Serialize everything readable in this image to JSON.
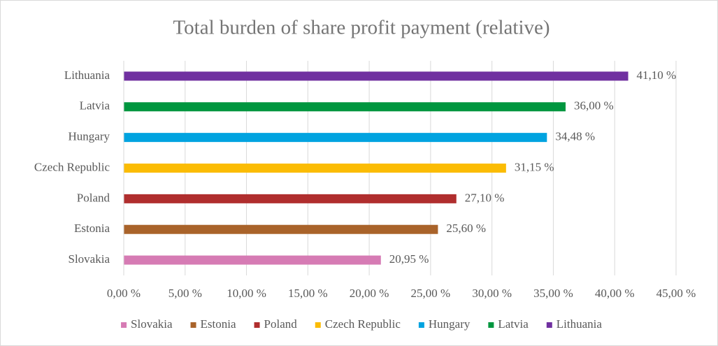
{
  "chart_data": {
    "type": "barh",
    "title": "Total burden of share profit payment (relative)",
    "categories": [
      "Slovakia",
      "Estonia",
      "Poland",
      "Czech Republic",
      "Hungary",
      "Latvia",
      "Lithuania"
    ],
    "values": [
      20.95,
      25.6,
      27.1,
      31.15,
      34.48,
      36.0,
      41.1
    ],
    "value_labels": [
      "20,95 %",
      "25,60 %",
      "27,10 %",
      "31,15 %",
      "34,48 %",
      "36,00 %",
      "41,10 %"
    ],
    "colors": [
      "#d67bb4",
      "#a9632a",
      "#b02e2e",
      "#fbbc04",
      "#00a3e0",
      "#00963f",
      "#7030a0"
    ],
    "xlim": [
      0,
      45
    ],
    "xticks": [
      {
        "value": 0,
        "label": "0,00 %"
      },
      {
        "value": 5,
        "label": "5,00 %"
      },
      {
        "value": 10,
        "label": "10,00 %"
      },
      {
        "value": 15,
        "label": "15,00 %"
      },
      {
        "value": 20,
        "label": "20,00 %"
      },
      {
        "value": 25,
        "label": "25,00 %"
      },
      {
        "value": 30,
        "label": "30,00 %"
      },
      {
        "value": 35,
        "label": "35,00 %"
      },
      {
        "value": 40,
        "label": "40,00 %"
      },
      {
        "value": 45,
        "label": "45,00 %"
      }
    ],
    "grid": true,
    "legend": "bottom"
  }
}
